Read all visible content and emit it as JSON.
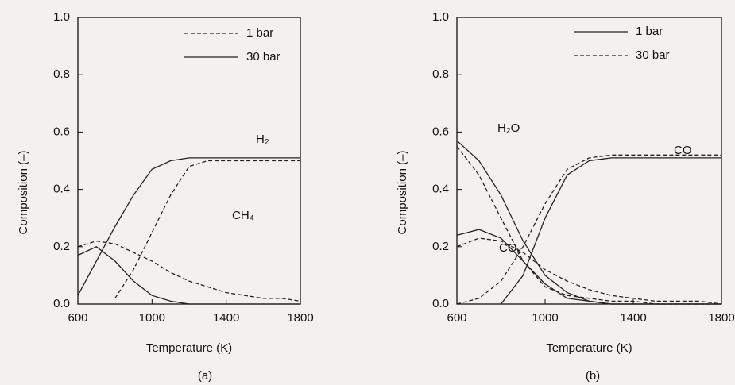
{
  "chart_data": [
    {
      "type": "line",
      "caption": "(a)",
      "xlabel": "Temperature (K)",
      "ylabel": "Composition (–)",
      "x": [
        600,
        700,
        800,
        900,
        1000,
        1100,
        1200,
        1300,
        1400,
        1500,
        1600,
        1700,
        1800
      ],
      "xlim": [
        600,
        1800
      ],
      "xticks": [
        600,
        1000,
        1400,
        1800
      ],
      "ylim": [
        0,
        1
      ],
      "yticks": [
        {
          "value": 0,
          "label": "0.0"
        },
        0.2,
        0.4,
        0.6,
        0.8,
        {
          "value": 1,
          "label": "1.0"
        }
      ],
      "legend_position": "top",
      "series": [
        {
          "name": "1 bar",
          "dash": true,
          "color": "#222222",
          "values": [
            null,
            null,
            0.02,
            0.12,
            0.25,
            0.38,
            0.48,
            0.5,
            0.5,
            0.5,
            0.5,
            0.5,
            0.5
          ]
        },
        {
          "name": "30 bar",
          "dash": false,
          "color": "#222222",
          "values": [
            0.03,
            0.15,
            0.27,
            0.38,
            0.47,
            0.5,
            0.51,
            0.51,
            0.51,
            0.51,
            0.51,
            0.51,
            0.51
          ]
        },
        {
          "name": "1 bar",
          "dash": true,
          "color": "#222222",
          "values": [
            0.2,
            0.22,
            0.21,
            0.18,
            0.15,
            0.11,
            0.08,
            0.06,
            0.04,
            0.03,
            0.02,
            0.02,
            0.01
          ]
        },
        {
          "name": "30 bar",
          "dash": false,
          "color": "#222222",
          "values": [
            0.17,
            0.2,
            0.15,
            0.08,
            0.03,
            0.01,
            0,
            0,
            0,
            0,
            0,
            0,
            0
          ]
        }
      ],
      "annotations": [
        "H₂",
        "CH₄"
      ]
    },
    {
      "type": "line",
      "caption": "(b)",
      "xlabel": "Temperature (K)",
      "ylabel": "Composition (–)",
      "x": [
        600,
        700,
        800,
        900,
        1000,
        1100,
        1200,
        1300,
        1400,
        1500,
        1600,
        1700,
        1800
      ],
      "xlim": [
        600,
        1800
      ],
      "xticks": [
        600,
        1000,
        1400,
        1800
      ],
      "ylim": [
        0,
        1
      ],
      "yticks": [
        {
          "value": 0,
          "label": "0.0"
        },
        0.2,
        0.4,
        0.6,
        0.8,
        {
          "value": 1,
          "label": "1.0"
        }
      ],
      "legend_position": "top",
      "series": [
        {
          "name": "1 bar",
          "dash": false,
          "color": "#222222",
          "values": [
            0.57,
            0.5,
            0.38,
            0.22,
            0.1,
            0.04,
            0.01,
            0,
            0,
            0,
            0,
            0,
            0
          ]
        },
        {
          "name": "30 bar",
          "dash": true,
          "color": "#222222",
          "values": [
            0.55,
            0.45,
            0.3,
            0.15,
            0.06,
            0.03,
            0.02,
            0.01,
            0.01,
            0,
            0,
            0,
            0
          ]
        },
        {
          "name": "1 bar",
          "dash": false,
          "color": "#222222",
          "values": [
            null,
            null,
            0,
            0.1,
            0.3,
            0.45,
            0.5,
            0.51,
            0.51,
            0.51,
            0.51,
            0.51,
            0.51
          ]
        },
        {
          "name": "30 bar",
          "dash": true,
          "color": "#222222",
          "values": [
            0,
            0.02,
            0.08,
            0.2,
            0.35,
            0.47,
            0.51,
            0.52,
            0.52,
            0.52,
            0.52,
            0.52,
            0.52
          ]
        },
        {
          "name": "1 bar",
          "dash": false,
          "color": "#222222",
          "values": [
            0.24,
            0.26,
            0.23,
            0.15,
            0.07,
            0.02,
            0.01,
            0,
            0,
            0,
            0,
            0,
            0
          ]
        },
        {
          "name": "30 bar",
          "dash": true,
          "color": "#222222",
          "values": [
            0.2,
            0.23,
            0.22,
            0.18,
            0.12,
            0.08,
            0.05,
            0.03,
            0.02,
            0.01,
            0.01,
            0.01,
            0
          ]
        }
      ],
      "annotations": [
        "H₂O",
        "CO",
        "CO₂"
      ]
    }
  ]
}
